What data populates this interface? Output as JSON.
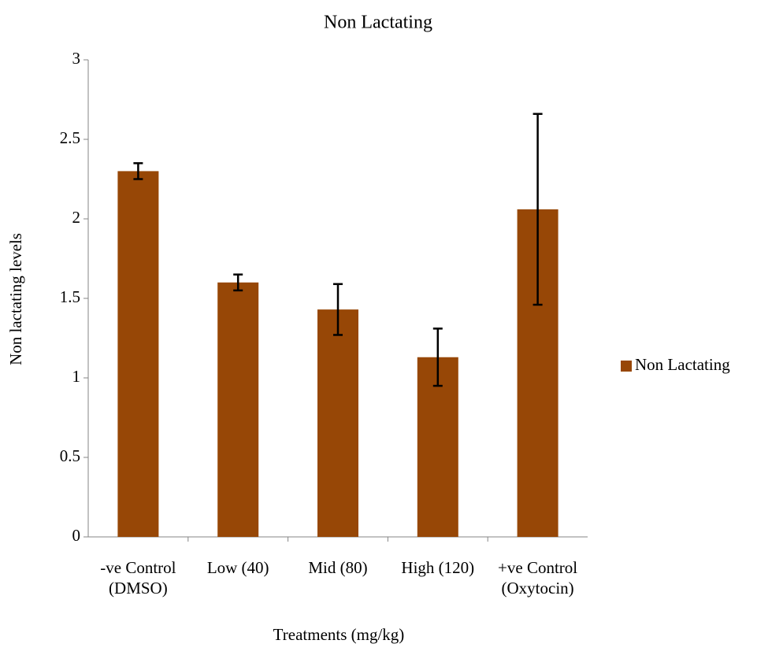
{
  "chart_data": {
    "type": "bar",
    "title": "Non Lactating",
    "x_label": "Treatments (mg/kg)",
    "y_label": "Non lactating levels",
    "categories": [
      "-ve Control (DMSO)",
      "Low (40)",
      "Mid (80)",
      "High (120)",
      "+ve Control (Oxytocin)"
    ],
    "series": [
      {
        "name": "Non Lactating",
        "color": "#974706",
        "values": [
          2.3,
          1.6,
          1.43,
          1.13,
          2.06
        ],
        "errors": [
          0.05,
          0.05,
          0.16,
          0.18,
          0.6
        ]
      }
    ],
    "ylim": [
      0,
      3
    ],
    "yticks": [
      0,
      0.5,
      1,
      1.5,
      2,
      2.5,
      3
    ],
    "grid": false,
    "legend": "right"
  }
}
